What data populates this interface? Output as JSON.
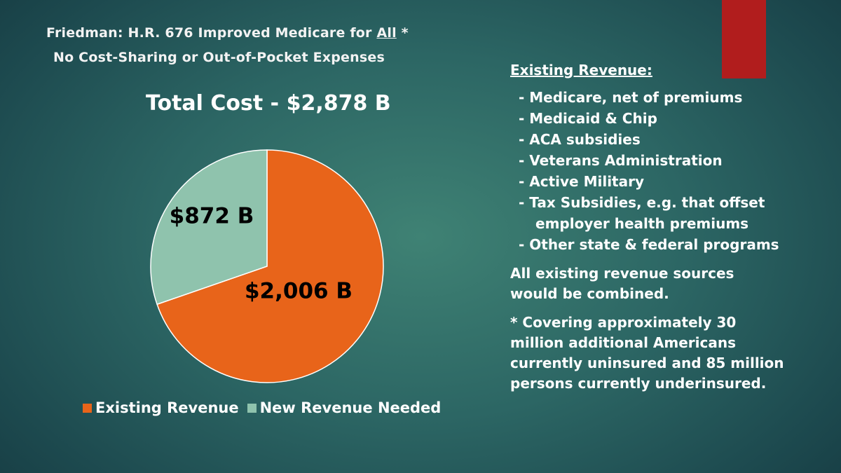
{
  "slide": {
    "title_prefix": "Friedman: H.R. 676 Improved Medicare for ",
    "title_emph": "All",
    "title_suffix": " *",
    "subtitle": "No Cost-Sharing or Out-of-Pocket Expenses",
    "accent_color": "#b11d1d"
  },
  "chart_data": {
    "type": "pie",
    "title": "Total Cost - $2,878 B",
    "slices": [
      {
        "name": "Existing Revenue",
        "value": 2006,
        "label": "$2,006 B",
        "color": "#e8641a"
      },
      {
        "name": "New Revenue Needed",
        "value": 872,
        "label": "$872 B",
        "color": "#8fc3ad"
      }
    ],
    "legend_position": "bottom"
  },
  "right_panel": {
    "heading": "Existing Revenue:",
    "items": [
      "- Medicare, net of premiums",
      "- Medicaid & Chip",
      "- ACA subsidies",
      "- Veterans Administration",
      "- Active Military",
      "- Tax Subsidies, e.g. that offset",
      "- Other state & federal programs"
    ],
    "item5_continuation": "employer health premiums",
    "combined_line1": "All existing revenue sources",
    "combined_line2": "would be combined.",
    "footnote_lines": [
      "* Covering approximately 30",
      "million additional Americans",
      "currently uninsured and 85 million",
      "persons currently underinsured."
    ]
  }
}
